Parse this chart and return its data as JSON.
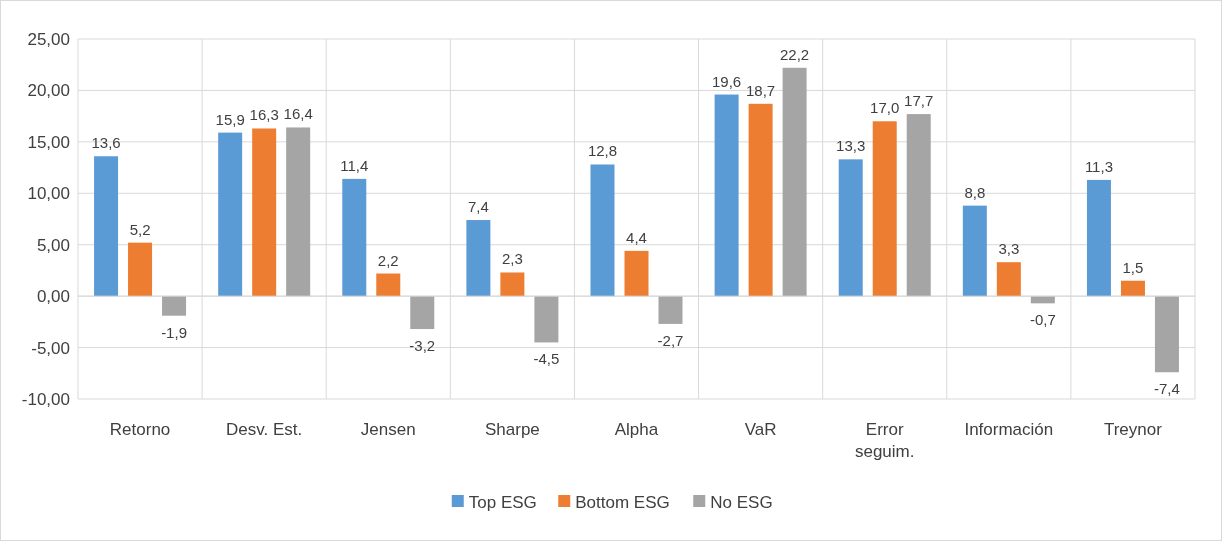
{
  "chart_data": {
    "type": "bar",
    "categories": [
      "Retorno",
      "Desv. Est.",
      "Jensen",
      "Sharpe",
      "Alpha",
      "VaR",
      "Error seguim.",
      "Información",
      "Treynor"
    ],
    "series": [
      {
        "name": "Top ESG",
        "color": "#5b9bd5",
        "values": [
          13.6,
          15.9,
          11.4,
          7.4,
          12.8,
          19.6,
          13.3,
          8.8,
          11.3
        ],
        "value_labels": [
          "13,6",
          "15,9",
          "11,4",
          "7,4",
          "12,8",
          "19,6",
          "13,3",
          "8,8",
          "11,3"
        ]
      },
      {
        "name": "Bottom ESG",
        "color": "#ed7d31",
        "values": [
          5.2,
          16.3,
          2.2,
          2.3,
          4.4,
          18.7,
          17.0,
          3.3,
          1.5
        ],
        "value_labels": [
          "5,2",
          "16,3",
          "2,2",
          "2,3",
          "4,4",
          "18,7",
          "17,0",
          "3,3",
          "1,5"
        ]
      },
      {
        "name": "No ESG",
        "color": "#a5a5a5",
        "values": [
          -1.9,
          16.4,
          -3.2,
          -4.5,
          -2.7,
          22.2,
          17.7,
          -0.7,
          -7.4
        ],
        "value_labels": [
          "-1,9",
          "16,4",
          "-3,2",
          "-4,5",
          "-2,7",
          "22,2",
          "17,7",
          "-0,7",
          "-7,4"
        ]
      }
    ],
    "ylim": [
      -10,
      25
    ],
    "yticks": [
      {
        "value": -10,
        "label": "-10,00"
      },
      {
        "value": -5,
        "label": "-5,00"
      },
      {
        "value": 0,
        "label": "0,00"
      },
      {
        "value": 5,
        "label": "5,00"
      },
      {
        "value": 10,
        "label": "10,00"
      },
      {
        "value": 15,
        "label": "15,00"
      },
      {
        "value": 20,
        "label": "20,00"
      },
      {
        "value": 25,
        "label": "25,00"
      }
    ],
    "grid": true,
    "legend": "bottom"
  }
}
